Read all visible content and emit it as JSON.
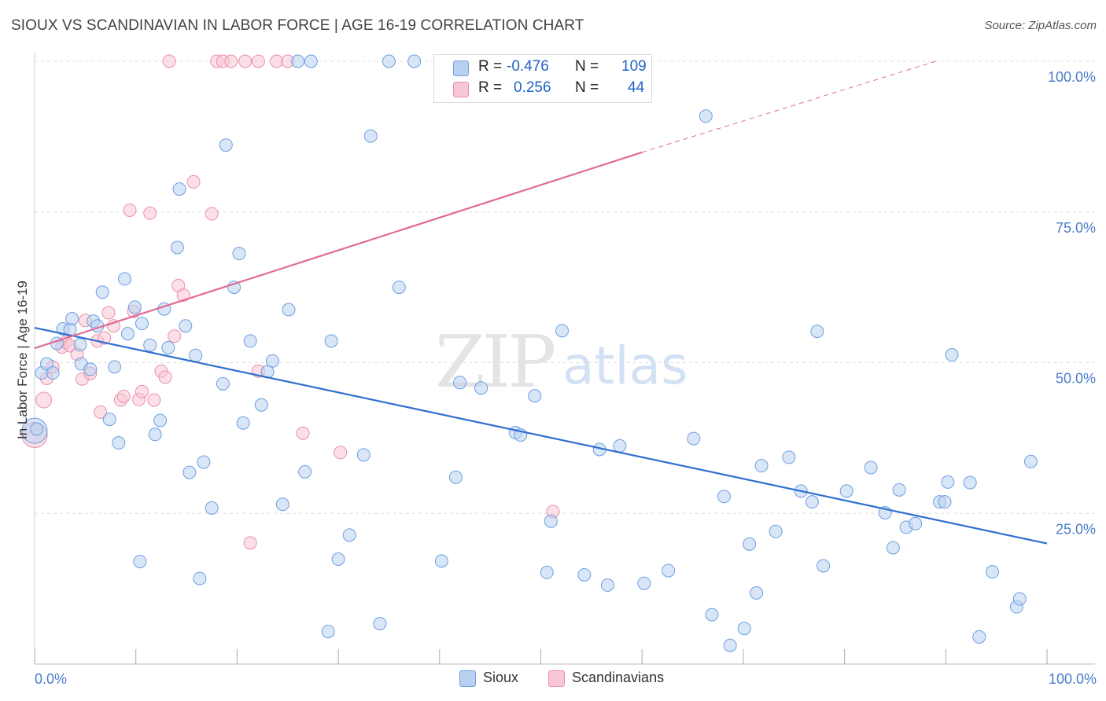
{
  "title": "SIOUX VS SCANDINAVIAN IN LABOR FORCE | AGE 16-19 CORRELATION CHART",
  "source": "Source: ZipAtlas.com",
  "watermark": {
    "zip": "ZIP",
    "atlas": "atlas"
  },
  "legend": {
    "rows": [
      {
        "r_label": "R =",
        "r_value": "-0.476",
        "n_label": "N =",
        "n_value": "109"
      },
      {
        "r_label": "R =",
        "r_value": "0.256",
        "n_label": "N =",
        "n_value": "44"
      }
    ]
  },
  "bottom_legend": [
    "Sioux",
    "Scandinavians"
  ],
  "colors": {
    "sioux_fill": "#b9d1f1",
    "sioux_stroke": "#6d9fe0",
    "sioux_line": "#2f6fd0",
    "scand_fill": "#f8c6d4",
    "scand_stroke": "#eb8fab",
    "scand_line": "#e06c96",
    "grid": "#dddddd",
    "tick_text": "#4a7cc9"
  },
  "chart_data": {
    "type": "scatter",
    "xlabel": "",
    "ylabel": "In Labor Force | Age 16-19",
    "xlim": [
      0,
      100
    ],
    "ylim": [
      0,
      100
    ],
    "x_tick_labels": [
      "0.0%",
      "100.0%"
    ],
    "y_tick_labels": [
      "100.0%",
      "75.0%",
      "50.0%",
      "25.0%"
    ],
    "y_tick_values": [
      100,
      75,
      50,
      25
    ],
    "series": [
      {
        "name": "Sioux",
        "trend": {
          "x0": 0,
          "y0": 55.8,
          "x1": 100,
          "y1": 20.0,
          "dashed_x1": 100
        },
        "points": [
          [
            0.2,
            39.0
          ],
          [
            0.7,
            48.3
          ],
          [
            1.2,
            49.8
          ],
          [
            1.8,
            48.3
          ],
          [
            2.2,
            53.2
          ],
          [
            2.8,
            55.6
          ],
          [
            3.5,
            55.5
          ],
          [
            3.7,
            57.3
          ],
          [
            4.5,
            53.0
          ],
          [
            4.6,
            49.8
          ],
          [
            5.5,
            48.9
          ],
          [
            5.8,
            56.9
          ],
          [
            6.2,
            56.1
          ],
          [
            6.7,
            61.7
          ],
          [
            7.4,
            40.6
          ],
          [
            7.9,
            49.3
          ],
          [
            8.3,
            36.7
          ],
          [
            8.9,
            63.9
          ],
          [
            9.2,
            54.8
          ],
          [
            9.9,
            59.2
          ],
          [
            10.4,
            17.0
          ],
          [
            10.6,
            56.5
          ],
          [
            11.4,
            52.9
          ],
          [
            11.9,
            38.1
          ],
          [
            12.4,
            40.4
          ],
          [
            12.8,
            58.9
          ],
          [
            13.2,
            52.5
          ],
          [
            14.1,
            69.1
          ],
          [
            14.3,
            78.8
          ],
          [
            14.9,
            56.1
          ],
          [
            15.3,
            31.8
          ],
          [
            15.9,
            51.2
          ],
          [
            16.3,
            14.2
          ],
          [
            16.7,
            33.5
          ],
          [
            17.5,
            25.9
          ],
          [
            18.6,
            46.5
          ],
          [
            18.9,
            86.1
          ],
          [
            19.7,
            62.5
          ],
          [
            20.2,
            68.1
          ],
          [
            20.6,
            40.0
          ],
          [
            21.3,
            53.6
          ],
          [
            22.4,
            43.0
          ],
          [
            23.0,
            48.5
          ],
          [
            23.5,
            50.3
          ],
          [
            24.5,
            26.5
          ],
          [
            25.1,
            58.8
          ],
          [
            26.0,
            100.0
          ],
          [
            26.7,
            31.9
          ],
          [
            27.3,
            100.0
          ],
          [
            29.0,
            5.4
          ],
          [
            29.3,
            53.6
          ],
          [
            30.0,
            17.4
          ],
          [
            31.1,
            21.4
          ],
          [
            32.5,
            34.7
          ],
          [
            33.2,
            87.6
          ],
          [
            34.1,
            6.7
          ],
          [
            35.0,
            100.0
          ],
          [
            36.0,
            62.5
          ],
          [
            37.5,
            100.0
          ],
          [
            40.2,
            17.1
          ],
          [
            41.6,
            31.0
          ],
          [
            42.0,
            46.7
          ],
          [
            44.1,
            45.8
          ],
          [
            46.2,
            100.0
          ],
          [
            47.5,
            38.4
          ],
          [
            48.0,
            38.0
          ],
          [
            49.4,
            44.5
          ],
          [
            50.6,
            15.2
          ],
          [
            51.0,
            23.7
          ],
          [
            52.1,
            55.3
          ],
          [
            54.3,
            14.8
          ],
          [
            55.8,
            35.6
          ],
          [
            56.6,
            13.1
          ],
          [
            57.8,
            36.2
          ],
          [
            60.2,
            13.4
          ],
          [
            62.6,
            15.5
          ],
          [
            65.1,
            37.4
          ],
          [
            66.3,
            90.9
          ],
          [
            66.9,
            8.2
          ],
          [
            68.1,
            27.8
          ],
          [
            68.7,
            3.1
          ],
          [
            70.1,
            5.9
          ],
          [
            70.6,
            19.9
          ],
          [
            71.3,
            11.8
          ],
          [
            71.8,
            32.9
          ],
          [
            73.2,
            22.0
          ],
          [
            74.5,
            34.3
          ],
          [
            75.7,
            28.7
          ],
          [
            76.8,
            26.9
          ],
          [
            77.3,
            55.2
          ],
          [
            77.9,
            16.3
          ],
          [
            80.2,
            28.7
          ],
          [
            82.6,
            32.6
          ],
          [
            84.0,
            25.1
          ],
          [
            84.8,
            19.3
          ],
          [
            85.4,
            28.9
          ],
          [
            86.1,
            22.7
          ],
          [
            87.0,
            23.3
          ],
          [
            89.4,
            26.9
          ],
          [
            89.9,
            26.9
          ],
          [
            90.2,
            30.2
          ],
          [
            90.6,
            51.3
          ],
          [
            92.4,
            30.1
          ],
          [
            93.3,
            4.5
          ],
          [
            94.6,
            15.3
          ],
          [
            97.0,
            9.5
          ],
          [
            97.3,
            10.8
          ],
          [
            98.4,
            33.6
          ]
        ],
        "large_points": [
          [
            0.0,
            38.7
          ]
        ]
      },
      {
        "name": "Scandinavians",
        "trend": {
          "x0": 0,
          "y0": 52.4,
          "x1": 60.0,
          "y1": 84.9,
          "dashed_x1": 89.0,
          "dashed_y1": 100.0
        },
        "points": [
          [
            1.2,
            47.4
          ],
          [
            1.8,
            49.3
          ],
          [
            2.7,
            52.6
          ],
          [
            3.1,
            53.4
          ],
          [
            3.5,
            52.8
          ],
          [
            4.2,
            51.4
          ],
          [
            4.7,
            47.3
          ],
          [
            5.0,
            57.0
          ],
          [
            5.5,
            48.2
          ],
          [
            6.2,
            53.6
          ],
          [
            6.5,
            41.8
          ],
          [
            6.9,
            54.1
          ],
          [
            7.3,
            58.3
          ],
          [
            7.8,
            56.1
          ],
          [
            8.5,
            43.8
          ],
          [
            8.8,
            44.4
          ],
          [
            9.4,
            75.3
          ],
          [
            9.8,
            58.5
          ],
          [
            10.3,
            43.9
          ],
          [
            10.6,
            45.2
          ],
          [
            11.4,
            74.8
          ],
          [
            11.8,
            43.8
          ],
          [
            12.5,
            48.6
          ],
          [
            12.9,
            47.6
          ],
          [
            13.3,
            100.0
          ],
          [
            13.8,
            54.4
          ],
          [
            14.2,
            62.8
          ],
          [
            14.7,
            61.2
          ],
          [
            15.7,
            80.0
          ],
          [
            17.5,
            74.7
          ],
          [
            18.0,
            100.0
          ],
          [
            18.6,
            100.0
          ],
          [
            19.4,
            100.0
          ],
          [
            20.8,
            100.0
          ],
          [
            21.3,
            20.1
          ],
          [
            22.1,
            100.0
          ],
          [
            22.1,
            48.6
          ],
          [
            23.9,
            100.0
          ],
          [
            25.0,
            100.0
          ],
          [
            26.5,
            38.3
          ],
          [
            30.2,
            35.1
          ],
          [
            51.2,
            25.3
          ]
        ],
        "large_points": [
          [
            0.9,
            43.8
          ],
          [
            0.0,
            38.0
          ]
        ]
      }
    ]
  }
}
